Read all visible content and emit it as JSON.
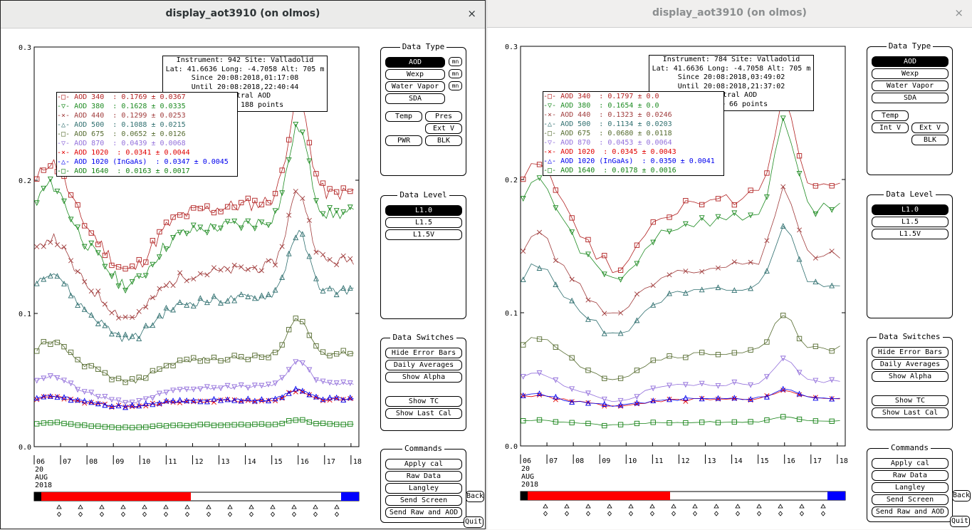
{
  "left": {
    "title": "display_aot3910 (on olmos)",
    "close": "×",
    "info": {
      "l1": "Instrument: 942 Site: Valladolid",
      "l2": "Lat: 41.6636 Long: -4.7058 Alt: 705 m",
      "l3": "Since 20:08:2018,01:17:08",
      "l4": "Until 20:08:2018,22:40:44",
      "l5": "Spectral AOD",
      "l6": "L1.0 -> 188 points"
    },
    "legend": [
      {
        "text": "AOD 340  : 0.1769 ± 0.0367",
        "color": "#b22222",
        "marker": "square"
      },
      {
        "text": "AOD 380  : 0.1628 ± 0.0335",
        "color": "#1e8b22",
        "marker": "tri-down"
      },
      {
        "text": "AOD 440  : 0.1299 ± 0.0253",
        "color": "#a03c3c",
        "marker": "x"
      },
      {
        "text": "AOD 500  : 0.1088 ± 0.0215",
        "color": "#2f6f6f",
        "marker": "tri-up"
      },
      {
        "text": "AOD 675  : 0.0652 ± 0.0126",
        "color": "#556b2f",
        "marker": "square"
      },
      {
        "text": "AOD 870  : 0.0439 ± 0.0068",
        "color": "#9370db",
        "marker": "tri-down"
      },
      {
        "text": "AOD 1020  : 0.0341 ± 0.0044",
        "color": "#e00000",
        "marker": "x"
      },
      {
        "text": "AOD 1020 (InGaAs)  : 0.0347 ± 0.0045",
        "color": "#0000ee",
        "marker": "tri-up"
      },
      {
        "text": "AOD 1640  : 0.0163 ± 0.0017",
        "color": "#128012",
        "marker": "square"
      }
    ],
    "series_levels": [
      0.1769,
      0.1628,
      0.1299,
      0.1088,
      0.0652,
      0.0439,
      0.0341,
      0.0347,
      0.0163
    ]
  },
  "right": {
    "title": "display_aot3910 (on olmos)",
    "close": "×",
    "info": {
      "l1": "Instrument: 784 Site: Valladolid",
      "l2": "Lat: 41.6636 Long: -4.7058 Alt: 705 m",
      "l3": "Since 20:08:2018,03:49:02",
      "l4": "Until 20:08:2018,21:37:02",
      "l5": "Spectral AOD",
      "l6": "L1.0 -> 66 points"
    },
    "legend": [
      {
        "text": "AOD 340  : 0.1797 ± 0.0",
        "color": "#b22222",
        "marker": "square"
      },
      {
        "text": "AOD 380  : 0.1654 ± 0.0",
        "color": "#1e8b22",
        "marker": "tri-down"
      },
      {
        "text": "AOD 440  : 0.1323 ± 0.0246",
        "color": "#a03c3c",
        "marker": "x"
      },
      {
        "text": "AOD 500  : 0.1134 ± 0.0203",
        "color": "#2f6f6f",
        "marker": "tri-up"
      },
      {
        "text": "AOD 675  : 0.0680 ± 0.0118",
        "color": "#556b2f",
        "marker": "square"
      },
      {
        "text": "AOD 870  : 0.0453 ± 0.0064",
        "color": "#9370db",
        "marker": "tri-down"
      },
      {
        "text": "AOD 1020  : 0.0345 ± 0.0043",
        "color": "#e00000",
        "marker": "x"
      },
      {
        "text": "AOD 1020 (InGaAs)  : 0.0350 ± 0.0041",
        "color": "#0000ee",
        "marker": "tri-up"
      },
      {
        "text": "AOD 1640  : 0.0178 ± 0.0016",
        "color": "#128012",
        "marker": "square"
      }
    ],
    "series_levels": [
      0.1797,
      0.1654,
      0.1323,
      0.1134,
      0.068,
      0.0453,
      0.0345,
      0.035,
      0.0178
    ]
  },
  "axis": {
    "y_ticks": [
      "0.3",
      "0.2",
      "0.1",
      "0.0"
    ],
    "x_ticks": [
      "06",
      "07",
      "08",
      "09",
      "10",
      "11",
      "12",
      "13",
      "14",
      "15",
      "16",
      "17",
      "18"
    ],
    "date_day": "20",
    "date_month": "AUG",
    "date_year": "2018",
    "ylim": [
      0,
      0.3
    ],
    "xlim": [
      6,
      18.3
    ]
  },
  "panels": {
    "data_type": {
      "title": "Data Type",
      "aod": "AOD",
      "wexp": "Wexp",
      "water_vapor": "Water Vapor",
      "sda": "SDA",
      "mn": "mn",
      "temp": "Temp",
      "pres": "Pres",
      "ext_v": "Ext V",
      "int_v": "Int V",
      "pwr": "PWR",
      "blk": "BLK"
    },
    "data_level": {
      "title": "Data Level",
      "l10": "L1.0",
      "l15": "L1.5",
      "l15v": "L1.5V"
    },
    "data_switches": {
      "title": "Data Switches",
      "hide_error_bars": "Hide Error Bars",
      "daily_averages": "Daily Averages",
      "show_alpha": "Show Alpha",
      "show_tc": "Show TC",
      "show_last_cal": "Show Last Cal"
    },
    "commands": {
      "title": "Commands",
      "apply_cal": "Apply cal",
      "raw_data": "Raw Data",
      "langley": "Langley",
      "send_screen": "Send Screen",
      "send_raw_aod": "Send Raw and AOD"
    },
    "back": "Back",
    "quit": "Quit"
  },
  "colors": {
    "aod340": "#b22222",
    "aod380": "#1e8b22",
    "aod440": "#a03c3c",
    "aod500": "#2f6f6f",
    "aod675": "#556b2f",
    "aod870": "#9370db",
    "aod1020": "#e00000",
    "aod1020_ingaas": "#0000ee",
    "aod1640": "#128012",
    "timeline_red": "#ff0000",
    "timeline_blue": "#0000ff"
  }
}
